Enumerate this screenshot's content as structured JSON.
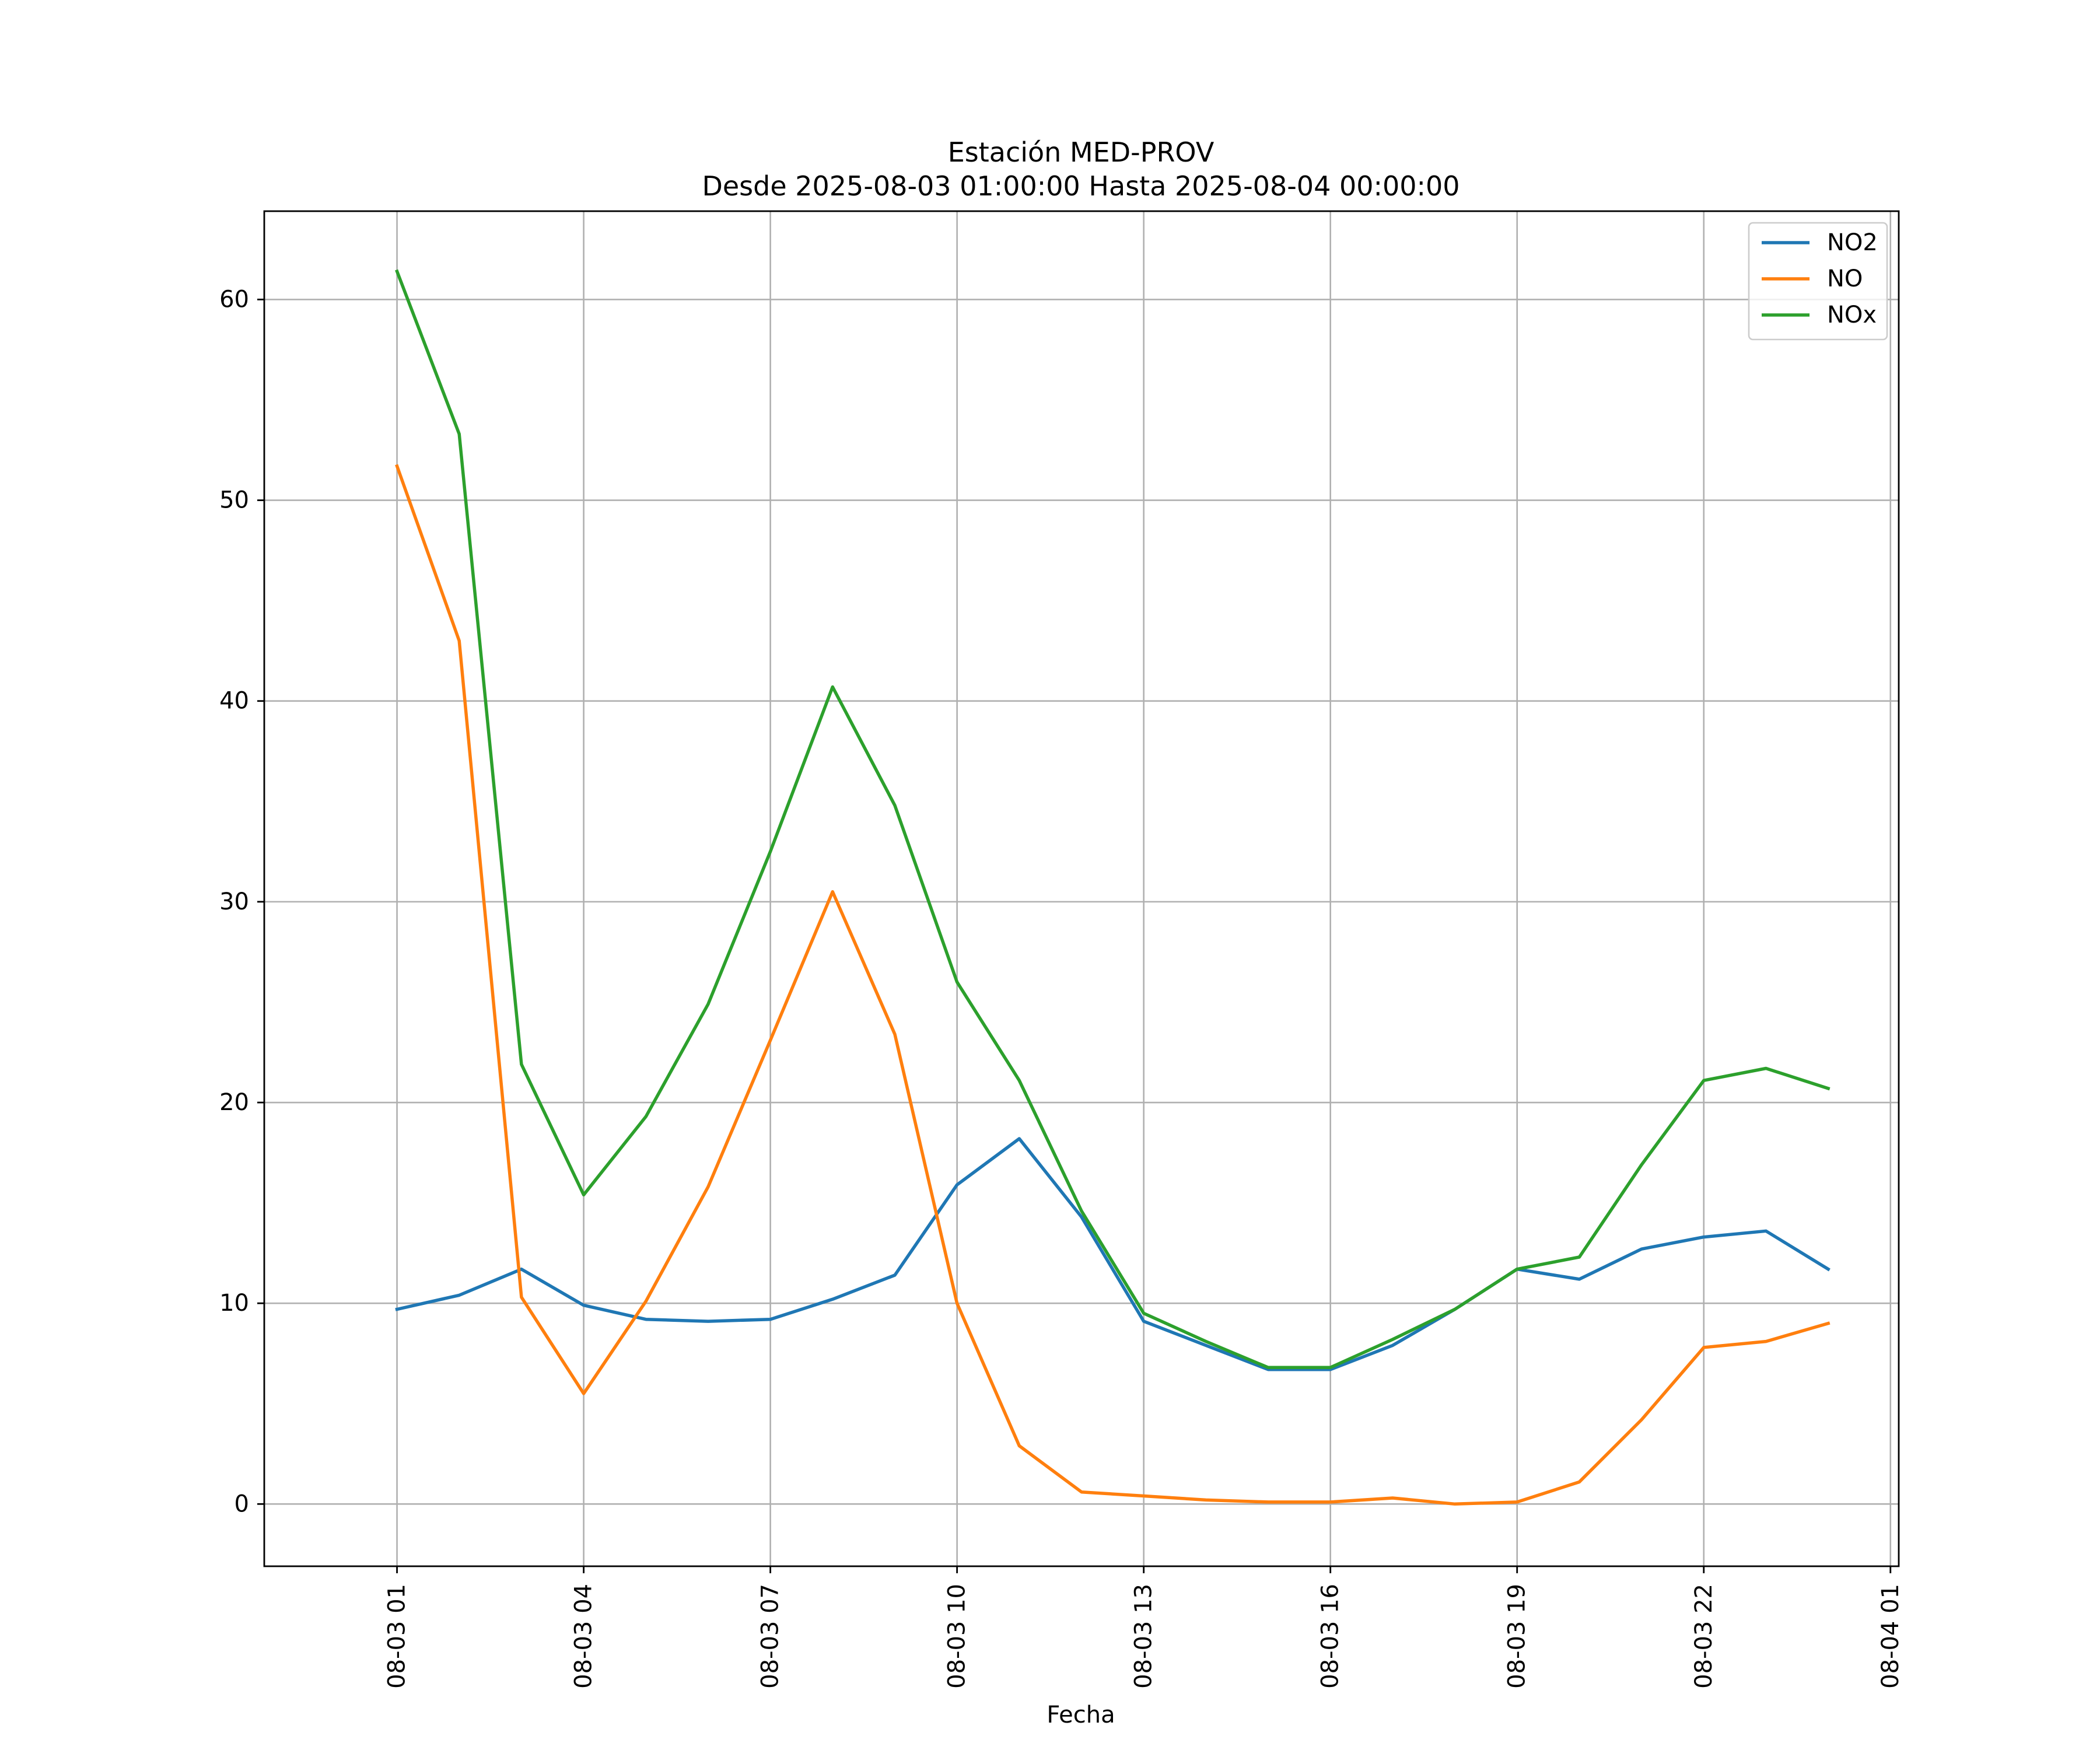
{
  "chart_data": {
    "type": "line",
    "title_lines": [
      "Estación MED-PROV",
      "Desde 2025-08-03 01:00:00 Hasta 2025-08-04 00:00:00"
    ],
    "xlabel": "Fecha",
    "ylabel": "",
    "x": [
      "2025-08-03 01:00",
      "2025-08-03 02:00",
      "2025-08-03 03:00",
      "2025-08-03 04:00",
      "2025-08-03 05:00",
      "2025-08-03 06:00",
      "2025-08-03 07:00",
      "2025-08-03 08:00",
      "2025-08-03 09:00",
      "2025-08-03 10:00",
      "2025-08-03 11:00",
      "2025-08-03 12:00",
      "2025-08-03 13:00",
      "2025-08-03 14:00",
      "2025-08-03 15:00",
      "2025-08-03 16:00",
      "2025-08-03 17:00",
      "2025-08-03 18:00",
      "2025-08-03 19:00",
      "2025-08-03 20:00",
      "2025-08-03 21:00",
      "2025-08-03 22:00",
      "2025-08-03 23:00",
      "2025-08-04 00:00"
    ],
    "series": [
      {
        "name": "NO2",
        "color": "#1f77b4",
        "values": [
          9.7,
          10.4,
          11.7,
          9.9,
          9.2,
          9.1,
          9.2,
          10.2,
          11.4,
          15.9,
          18.2,
          14.3,
          9.1,
          7.9,
          6.7,
          6.7,
          7.9,
          9.7,
          11.7,
          11.2,
          12.7,
          13.3,
          13.6,
          11.7
        ]
      },
      {
        "name": "NO",
        "color": "#ff7f0e",
        "values": [
          51.7,
          43.0,
          10.3,
          5.5,
          10.1,
          15.8,
          23.1,
          30.5,
          23.4,
          10.0,
          2.9,
          0.6,
          0.4,
          0.2,
          0.1,
          0.1,
          0.3,
          0.0,
          0.1,
          1.1,
          4.2,
          7.8,
          8.1,
          9.0
        ]
      },
      {
        "name": "NOx",
        "color": "#2ca02c",
        "values": [
          61.4,
          53.3,
          21.9,
          15.4,
          19.3,
          24.9,
          32.5,
          40.7,
          34.8,
          26.0,
          21.1,
          14.6,
          9.5,
          8.1,
          6.8,
          6.8,
          8.2,
          9.7,
          11.7,
          12.3,
          16.9,
          21.1,
          21.7,
          20.7
        ]
      }
    ],
    "xticks": [
      "08-03 01",
      "08-03 04",
      "08-03 07",
      "08-03 10",
      "08-03 13",
      "08-03 16",
      "08-03 19",
      "08-03 22",
      "08-04 01"
    ],
    "yticks": [
      0,
      10,
      20,
      30,
      40,
      50,
      60
    ],
    "xlim": [
      "2025-08-02 22:52",
      "2025-08-04 01:08"
    ],
    "ylim": [
      -3.1,
      64.4
    ],
    "grid": true,
    "legend_position": "top-right"
  }
}
